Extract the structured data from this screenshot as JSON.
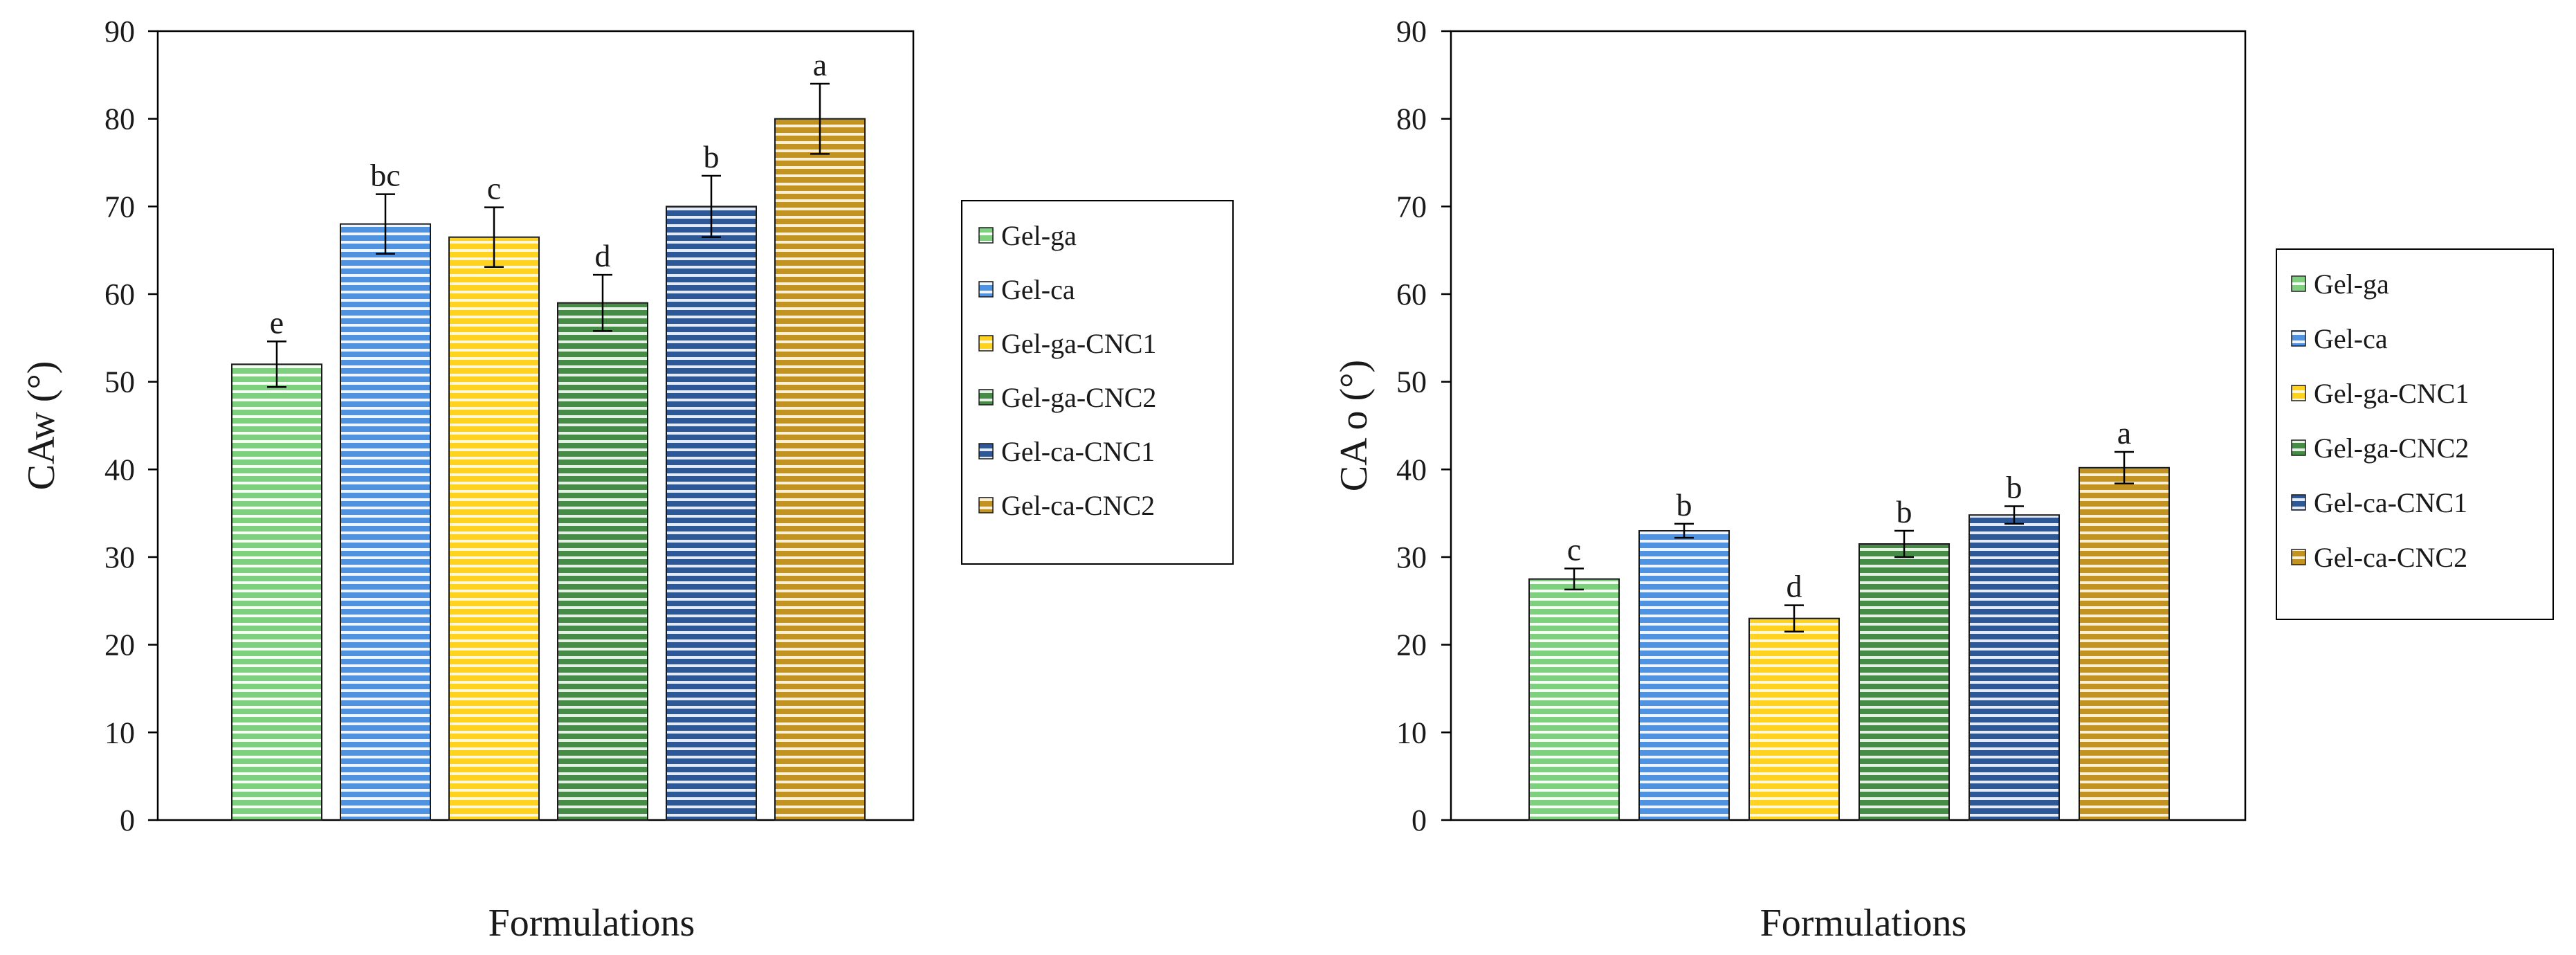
{
  "chart_data": [
    {
      "type": "bar",
      "title": "",
      "xlabel": "Formulations",
      "ylabel": "CAw (°)",
      "ylim": [
        0,
        90
      ],
      "yticks": [
        0,
        10,
        20,
        30,
        40,
        50,
        60,
        70,
        80,
        90
      ],
      "grid": false,
      "legend_position": "right",
      "categories": [
        "Gel-ga",
        "Gel-ca",
        "Gel-ga-CNC1",
        "Gel-ga-CNC2",
        "Gel-ca-CNC1",
        "Gel-ca-CNC2"
      ],
      "values": [
        52,
        68,
        66.5,
        59,
        70,
        80
      ],
      "errors": [
        2.6,
        3.4,
        3.4,
        3.2,
        3.5,
        4.0
      ],
      "significance_letters": [
        "e",
        "bc",
        "c",
        "d",
        "b",
        "a"
      ]
    },
    {
      "type": "bar",
      "title": "",
      "xlabel": "Formulations",
      "ylabel": "CA o (°)",
      "ylim": [
        0,
        90
      ],
      "yticks": [
        0,
        10,
        20,
        30,
        40,
        50,
        60,
        70,
        80,
        90
      ],
      "grid": false,
      "legend_position": "right",
      "categories": [
        "Gel-ga",
        "Gel-ca",
        "Gel-ga-CNC1",
        "Gel-ga-CNC2",
        "Gel-ca-CNC1",
        "Gel-ca-CNC2"
      ],
      "values": [
        27.5,
        33,
        23,
        31.5,
        34.8,
        40.2
      ],
      "errors": [
        1.2,
        0.8,
        1.5,
        1.5,
        1.0,
        1.8
      ],
      "significance_letters": [
        "c",
        "b",
        "d",
        "b",
        "b",
        "a"
      ]
    }
  ],
  "series_colors": {
    "Gel-ga": {
      "fill": "#7ed07e",
      "stripe": "#f2fff2"
    },
    "Gel-ca": {
      "fill": "#4f92e0",
      "stripe": "#eef5ff"
    },
    "Gel-ga-CNC1": {
      "fill": "#ffd21f",
      "stripe": "#fff8d6"
    },
    "Gel-ga-CNC2": {
      "fill": "#468c46",
      "stripe": "#e6f2e6"
    },
    "Gel-ca-CNC1": {
      "fill": "#2e5796",
      "stripe": "#e2ebf7"
    },
    "Gel-ca-CNC2": {
      "fill": "#c29321",
      "stripe": "#fbf0d3"
    }
  }
}
